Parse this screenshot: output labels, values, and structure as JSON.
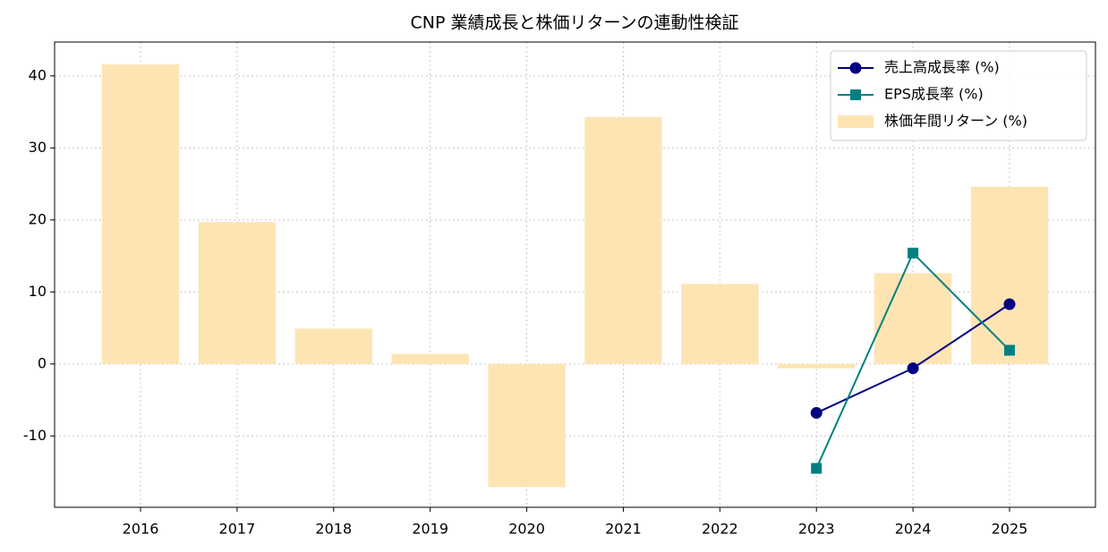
{
  "chart_data": {
    "type": "bar",
    "title": "CNP 業績成長と株価リターンの連動性検証",
    "categories": [
      "2016",
      "2017",
      "2018",
      "2019",
      "2020",
      "2021",
      "2022",
      "2023",
      "2024",
      "2025"
    ],
    "series": [
      {
        "name": "売上高成長率 (%)",
        "type": "line",
        "marker": "circle",
        "color": "#000080",
        "values": [
          null,
          null,
          null,
          null,
          null,
          null,
          null,
          -6.8,
          -0.6,
          8.3
        ]
      },
      {
        "name": "EPS成長率 (%)",
        "type": "line",
        "marker": "square",
        "color": "#008080",
        "values": [
          null,
          null,
          null,
          null,
          null,
          null,
          null,
          -14.5,
          15.4,
          1.9
        ]
      },
      {
        "name": "株価年間リターン (%)",
        "type": "bar",
        "color": "#ffe4b3",
        "values": [
          41.6,
          19.7,
          4.9,
          1.4,
          -17.1,
          34.3,
          11.1,
          -0.6,
          12.6,
          24.6
        ]
      }
    ],
    "ylim": [
      -19.9,
      44.7
    ],
    "yticks": [
      -10,
      0,
      10,
      20,
      30,
      40
    ],
    "grid": true,
    "legend": "upper right"
  }
}
